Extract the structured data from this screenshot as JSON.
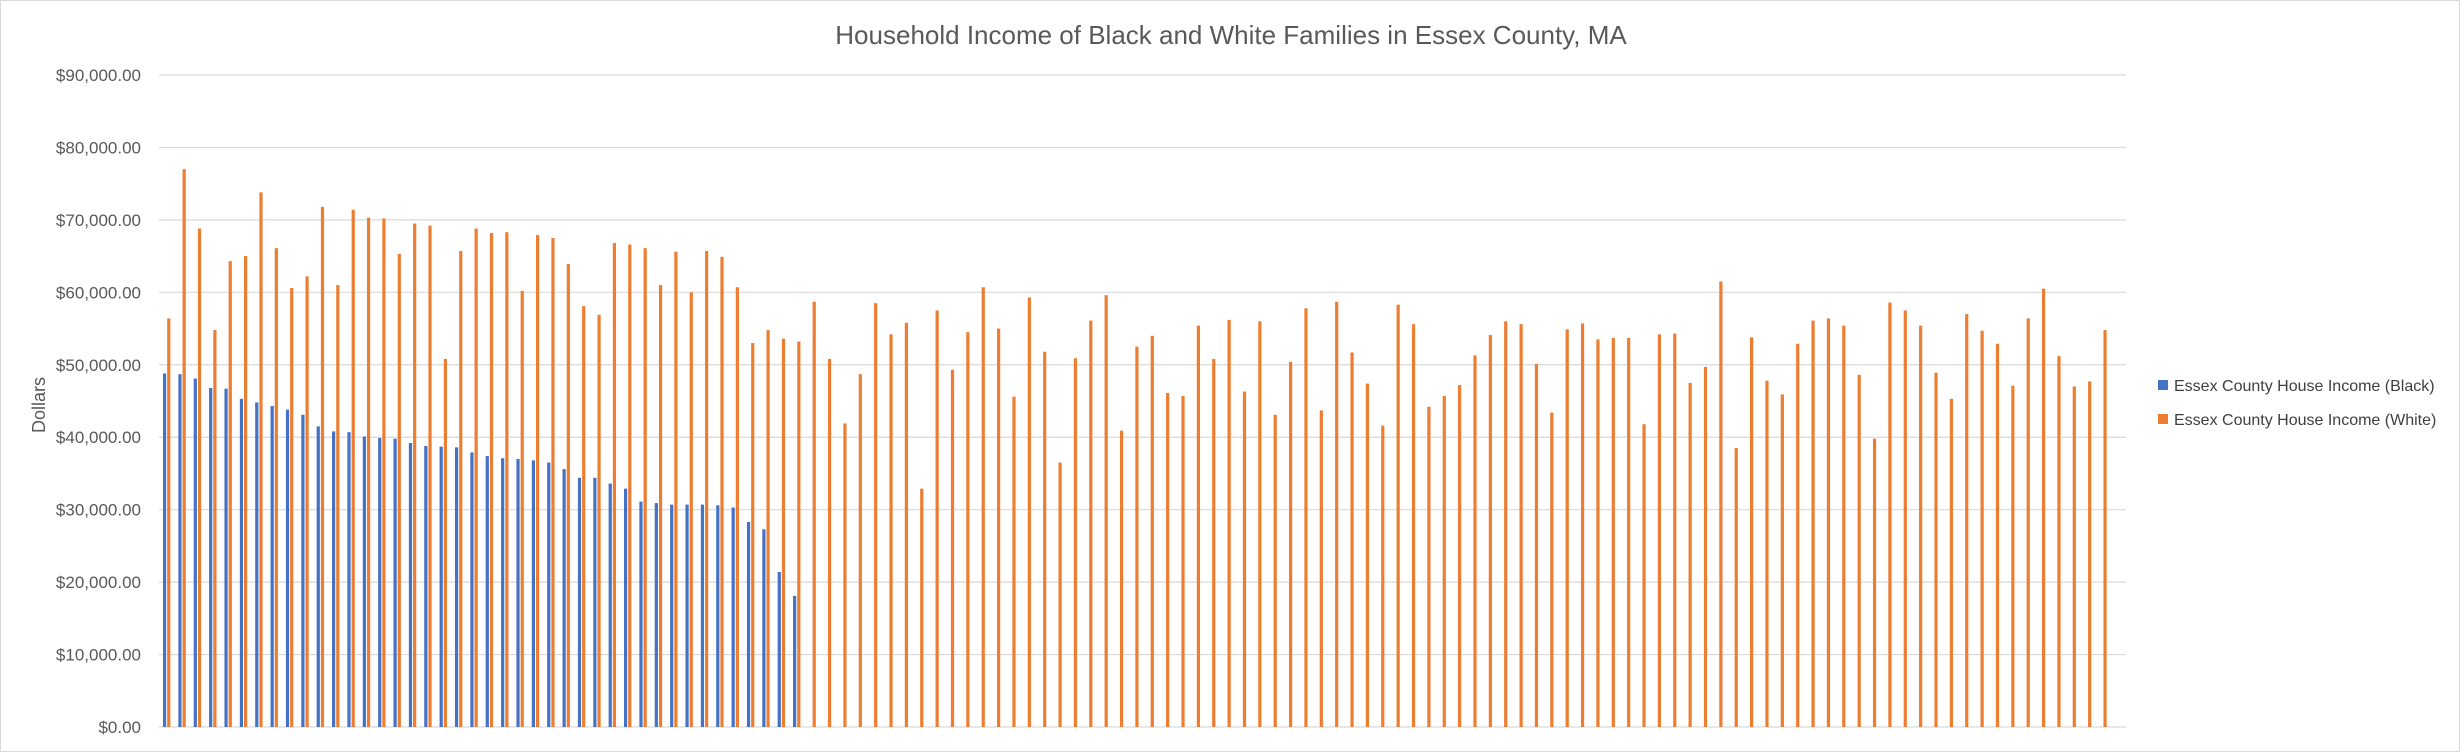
{
  "chart_data": {
    "type": "bar",
    "title": "Household Income of Black and White Families in Essex County, MA",
    "ylabel": "Dollars",
    "xlabel": "",
    "ylim": [
      0,
      90000
    ],
    "yticks": [
      "$0.00",
      "$10,000.00",
      "$20,000.00",
      "$30,000.00",
      "$40,000.00",
      "$50,000.00",
      "$60,000.00",
      "$70,000.00",
      "$80,000.00",
      "$90,000.00"
    ],
    "grid": true,
    "legend_position": "right",
    "colors": {
      "black": "#4472C4",
      "white": "#ED7D31"
    },
    "series": [
      {
        "name": "Essex County House Income (Black)",
        "color": "#4472C4",
        "values": [
          48800,
          48700,
          48100,
          46800,
          46700,
          45300,
          44800,
          44300,
          43800,
          43100,
          41500,
          40800,
          40700,
          40100,
          39900,
          39800,
          39200,
          38800,
          38700,
          38600,
          37900,
          37400,
          37100,
          37000,
          36800,
          36500,
          35600,
          34400,
          34400,
          33600,
          32900,
          31100,
          30900,
          30700,
          30700,
          30700,
          30600,
          30300,
          28300,
          27300,
          21400,
          18100,
          null,
          null,
          null,
          null,
          null,
          null,
          null,
          null,
          null,
          null,
          null,
          null,
          null,
          null,
          null,
          null,
          null,
          null,
          null,
          null,
          null,
          null,
          null,
          null,
          null,
          null,
          null,
          null,
          null,
          null,
          null,
          null,
          null,
          null,
          null,
          null,
          null,
          null,
          null,
          null,
          null,
          null,
          null,
          null,
          null,
          null,
          null,
          null,
          null,
          null,
          null,
          null,
          null,
          null,
          null,
          null,
          null,
          null,
          null,
          null,
          null,
          null,
          null,
          null,
          null,
          null,
          null,
          null,
          null,
          null,
          null,
          null,
          null,
          null,
          null,
          null,
          null,
          null,
          null,
          null,
          null,
          null,
          null,
          null,
          null,
          null
        ]
      },
      {
        "name": "Essex County House Income (White)",
        "color": "#ED7D31",
        "values": [
          56400,
          77000,
          68800,
          54800,
          64300,
          65000,
          73800,
          66100,
          60600,
          62200,
          71800,
          61000,
          71400,
          70300,
          70200,
          65300,
          69500,
          69200,
          50800,
          65700,
          68800,
          68200,
          68300,
          60200,
          67900,
          67500,
          63900,
          58100,
          56900,
          66800,
          66600,
          66100,
          61000,
          65600,
          60000,
          65700,
          64900,
          60700,
          53000,
          54800,
          53600,
          53200,
          58700,
          50800,
          41900,
          48700,
          58500,
          54200,
          55800,
          32900,
          57500,
          49300,
          54500,
          60700,
          55000,
          45600,
          59300,
          51800,
          36500,
          50900,
          56100,
          59600,
          40900,
          52500,
          54000,
          46100,
          45700,
          55400,
          50800,
          56200,
          46300,
          56000,
          43100,
          50400,
          57800,
          43700,
          58700,
          51700,
          47400,
          41600,
          58300,
          55600,
          44200,
          45700,
          47200,
          51300,
          54100,
          56000,
          55600,
          50100,
          43400,
          54900,
          55700,
          53500,
          53700,
          53700,
          41800,
          54200,
          54300,
          47500,
          49700,
          61500,
          38500,
          53800,
          47800,
          45900,
          52900,
          56100,
          56400,
          55400,
          48600,
          39800,
          58600,
          57500,
          55400,
          48900,
          45300,
          57000,
          54700,
          52900,
          47100,
          56400,
          60500,
          51200,
          47000,
          47700,
          54800
        ]
      }
    ]
  }
}
